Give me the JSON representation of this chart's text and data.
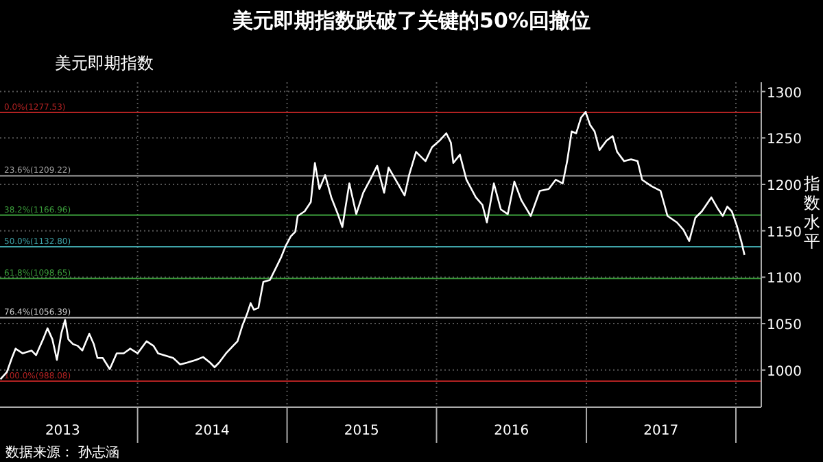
{
  "chart_data": {
    "type": "line",
    "title": "美元即期指数跌破了关键的50%回撤位",
    "subtitle": "美元即期指数",
    "ylabel": "指数水平",
    "annotations": [
      "数据来源： 孙志涵"
    ],
    "x": [
      "2013-01-31",
      "2013-02-16",
      "2013-02-28",
      "2013-03-09",
      "2013-03-26",
      "2013-04-17",
      "2013-04-28",
      "2013-05-15",
      "2013-05-26",
      "2013-06-07",
      "2013-06-18",
      "2013-06-29",
      "2013-07-08",
      "2013-07-16",
      "2013-07-27",
      "2013-08-08",
      "2013-08-19",
      "2013-09-05",
      "2013-09-16",
      "2013-09-25",
      "2013-10-08",
      "2013-10-25",
      "2013-11-11",
      "2013-11-28",
      "2013-12-14",
      "2014-01-01",
      "2014-01-23",
      "2014-02-09",
      "2014-02-20",
      "2014-03-07",
      "2014-03-29",
      "2014-04-15",
      "2014-05-02",
      "2014-05-24",
      "2014-06-10",
      "2014-06-27",
      "2014-07-08",
      "2014-07-19",
      "2014-08-05",
      "2014-08-22",
      "2014-09-02",
      "2014-09-14",
      "2014-09-25",
      "2014-10-04",
      "2014-10-12",
      "2014-10-23",
      "2014-11-04",
      "2014-11-20",
      "2014-12-07",
      "2014-12-18",
      "2014-12-29",
      "2015-01-10",
      "2015-01-21",
      "2015-01-27",
      "2015-02-13",
      "2015-02-28",
      "2015-03-10",
      "2015-03-21",
      "2015-04-04",
      "2015-04-19",
      "2015-05-05",
      "2015-05-16",
      "2015-06-02",
      "2015-06-19",
      "2015-07-06",
      "2015-07-23",
      "2015-08-09",
      "2015-08-26",
      "2015-09-06",
      "2015-09-23",
      "2015-10-15",
      "2015-10-26",
      "2015-11-12",
      "2015-12-05",
      "2015-12-21",
      "2016-01-08",
      "2016-01-25",
      "2016-02-05",
      "2016-02-11",
      "2016-02-27",
      "2016-03-14",
      "2016-04-06",
      "2016-04-22",
      "2016-05-03",
      "2016-05-20",
      "2016-06-06",
      "2016-06-23",
      "2016-07-09",
      "2016-07-26",
      "2016-08-18",
      "2016-09-09",
      "2016-10-01",
      "2016-10-18",
      "2016-11-04",
      "2016-11-15",
      "2016-11-26",
      "2016-12-07",
      "2016-12-19",
      "2016-12-30",
      "2017-01-10",
      "2017-01-21",
      "2017-02-02",
      "2017-02-19",
      "2017-03-06",
      "2017-03-17",
      "2017-04-03",
      "2017-04-20",
      "2017-05-06",
      "2017-05-17",
      "2017-06-09",
      "2017-07-01",
      "2017-07-18",
      "2017-08-10",
      "2017-08-26",
      "2017-09-09",
      "2017-09-24",
      "2017-10-10",
      "2017-11-02",
      "2017-11-19",
      "2017-11-30",
      "2017-12-11",
      "2017-12-22",
      "2018-01-03",
      "2018-01-14",
      "2018-01-22"
    ],
    "series": [
      {
        "color": "#ffffff",
        "values": [
          990,
          998,
          1013,
          1023,
          1018,
          1021,
          1016,
          1033,
          1045,
          1033,
          1011,
          1040,
          1054,
          1033,
          1028,
          1026,
          1021,
          1039,
          1028,
          1013,
          1013,
          1001,
          1018,
          1018,
          1023,
          1018,
          1031,
          1026,
          1018,
          1016,
          1013,
          1006,
          1008,
          1011,
          1014,
          1008,
          1003,
          1008,
          1018,
          1026,
          1031,
          1048,
          1060,
          1072,
          1065,
          1067,
          1095,
          1097,
          1112,
          1122,
          1134,
          1144,
          1149,
          1166,
          1171,
          1181,
          1223,
          1195,
          1210,
          1186,
          1168,
          1154,
          1201,
          1168,
          1191,
          1205,
          1220,
          1191,
          1218,
          1205,
          1188,
          1210,
          1235,
          1225,
          1240,
          1247,
          1255,
          1245,
          1223,
          1232,
          1205,
          1186,
          1178,
          1159,
          1201,
          1173,
          1168,
          1203,
          1183,
          1166,
          1193,
          1195,
          1205,
          1201,
          1225,
          1257,
          1255,
          1272,
          1278,
          1264,
          1257,
          1237,
          1247,
          1252,
          1235,
          1225,
          1227,
          1225,
          1205,
          1198,
          1193,
          1166,
          1159,
          1151,
          1139,
          1164,
          1171,
          1186,
          1173,
          1166,
          1176,
          1171,
          1156,
          1139,
          1124
        ]
      }
    ],
    "xlim": [
      "2013-01-30",
      "2018-03-04"
    ],
    "xticks": [
      {
        "value": "2013-07-02",
        "label": "2013"
      },
      {
        "value": "2014-01-01",
        "label": null
      },
      {
        "value": "2014-07-02",
        "label": "2014"
      },
      {
        "value": "2015-01-01",
        "label": null
      },
      {
        "value": "2015-07-02",
        "label": "2015"
      },
      {
        "value": "2016-01-01",
        "label": null
      },
      {
        "value": "2016-07-02",
        "label": "2016"
      },
      {
        "value": "2017-01-01",
        "label": null
      },
      {
        "value": "2017-07-02",
        "label": "2017"
      },
      {
        "value": "2018-01-01",
        "label": null
      }
    ],
    "ylim": [
      960,
      1310
    ],
    "yticks": [
      1000,
      1050,
      1100,
      1150,
      1200,
      1250,
      1300
    ],
    "grid": true,
    "line_style": "solid",
    "marker": "none",
    "ref_lines": [
      {
        "axis": "y",
        "value": 1277.53,
        "label": "0.0%(1277.53)",
        "color": "#b22222"
      },
      {
        "axis": "y",
        "value": 1209.22,
        "label": "23.6%(1209.22)",
        "color": "#a0a0a0"
      },
      {
        "axis": "y",
        "value": 1166.96,
        "label": "38.2%(1166.96)",
        "color": "#3a9a3a"
      },
      {
        "axis": "y",
        "value": 1132.8,
        "label": "50.0%(1132.80)",
        "color": "#3fa3a8"
      },
      {
        "axis": "y",
        "value": 1098.65,
        "label": "61.8%(1098.65)",
        "color": "#3a9a3a"
      },
      {
        "axis": "y",
        "value": 1056.39,
        "label": "76.4%(1056.39)",
        "color": "#c8c8c8"
      },
      {
        "axis": "y",
        "value": 988.08,
        "label": "100.0%(988.08)",
        "color": "#b22222"
      }
    ]
  }
}
